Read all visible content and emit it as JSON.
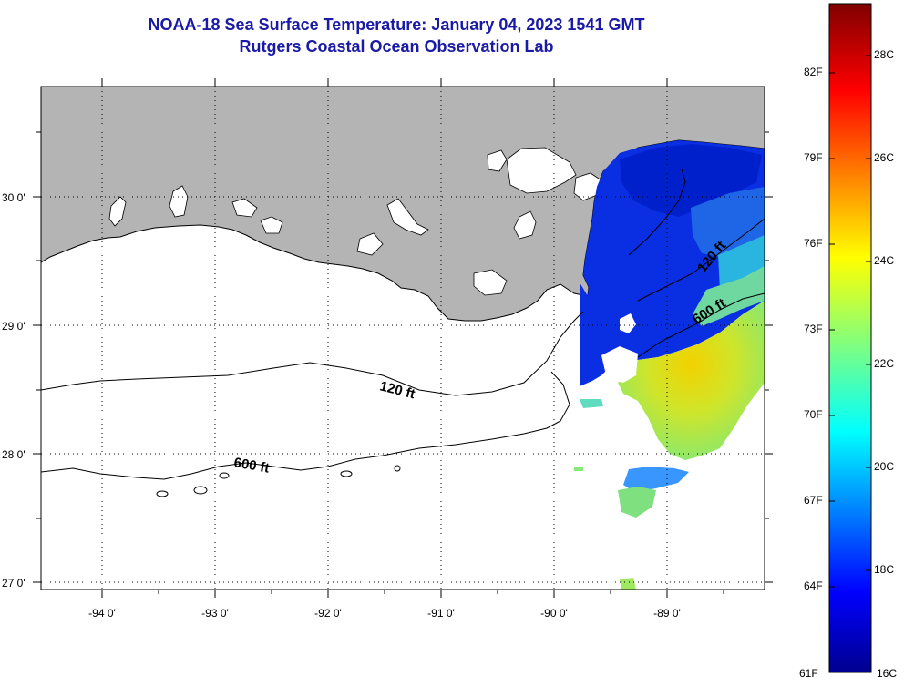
{
  "title": {
    "line1": "NOAA-18 Sea Surface Temperature:  January 04, 2023 1541 GMT",
    "line2": "Rutgers Coastal Ocean Observation Lab"
  },
  "map": {
    "lat_labels": [
      "30 0'",
      "29 0'",
      "28 0'",
      "27 0'"
    ],
    "lon_labels": [
      "-94 0'",
      "-93 0'",
      "-92 0'",
      "-91 0'",
      "-90 0'",
      "-89 0'"
    ],
    "contour_labels": [
      "120 ft",
      "600 ft",
      "120 ft",
      "600 ft"
    ],
    "colors": {
      "land": "#b4b4b4",
      "water": "#ffffff",
      "coastline": "#000000"
    }
  },
  "colorbar": {
    "fahrenheit": [
      "82F",
      "79F",
      "76F",
      "73F",
      "70F",
      "67F",
      "64F",
      "61F"
    ],
    "celsius": [
      "28C",
      "26C",
      "24C",
      "22C",
      "20C",
      "18C",
      "16C"
    ],
    "range_c": [
      16,
      29.5
    ],
    "colormap": "jet"
  }
}
